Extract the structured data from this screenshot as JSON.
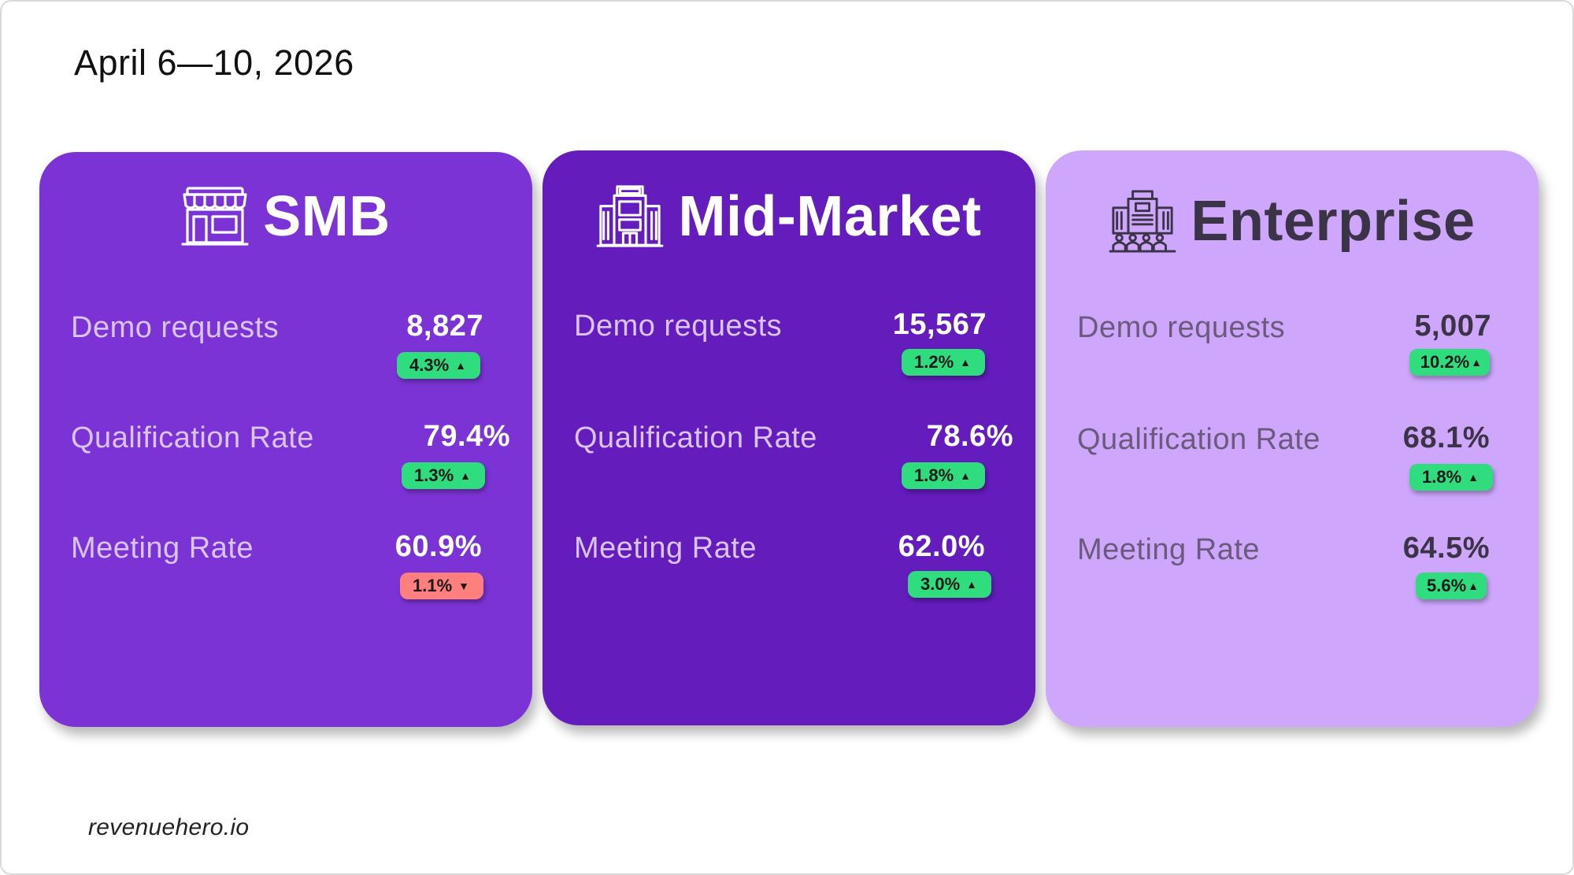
{
  "date_range": "April 6—10, 2026",
  "footer": "revenuehero.io",
  "colors": {
    "smb_card": "#7c33d6",
    "mid_card": "#641cbd",
    "enterprise_card": "#cea6fc",
    "badge_up": "#2fdc7e",
    "badge_down": "#ff7f7f"
  },
  "segments": {
    "smb": {
      "title": "SMB",
      "icon": "storefront-icon",
      "demo": {
        "label": "Demo requests",
        "value": "8,827",
        "change": "4.3%",
        "direction": "up"
      },
      "qual": {
        "label": "Qualification Rate",
        "value": "79.4%",
        "change": "1.3%",
        "direction": "up"
      },
      "meet": {
        "label": "Meeting Rate",
        "value": "60.9%",
        "change": "1.1%",
        "direction": "down"
      }
    },
    "mid": {
      "title": "Mid-Market",
      "icon": "office-building-icon",
      "demo": {
        "label": "Demo requests",
        "value": "15,567",
        "change": "1.2%",
        "direction": "up"
      },
      "qual": {
        "label": "Qualification Rate",
        "value": "78.6%",
        "change": "1.8%",
        "direction": "up"
      },
      "meet": {
        "label": "Meeting Rate",
        "value": "62.0%",
        "change": "3.0%",
        "direction": "up"
      }
    },
    "ent": {
      "title": "Enterprise",
      "icon": "corporate-building-people-icon",
      "demo": {
        "label": "Demo requests",
        "value": "5,007",
        "change": "10.2%",
        "direction": "up"
      },
      "qual": {
        "label": "Qualification Rate",
        "value": "68.1%",
        "change": "1.8%",
        "direction": "up"
      },
      "meet": {
        "label": "Meeting Rate",
        "value": "64.5%",
        "change": "5.6%",
        "direction": "up"
      }
    }
  }
}
